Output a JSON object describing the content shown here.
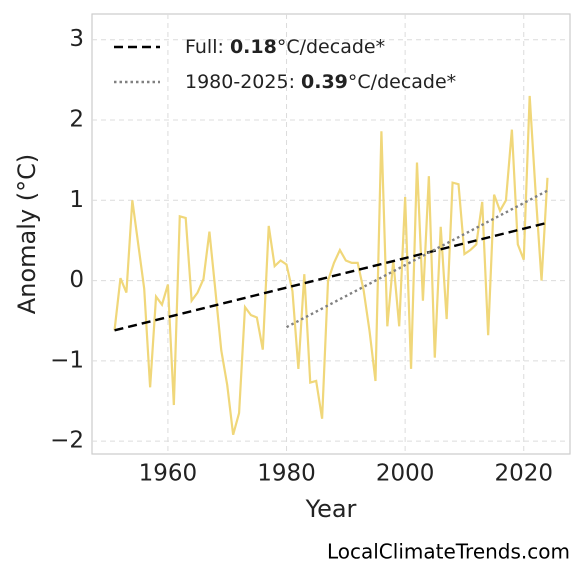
{
  "chart_data": {
    "type": "line",
    "xlabel": "Year",
    "ylabel": "Anomaly (°C)",
    "watermark": "LocalClimateTrends.com",
    "xlim": [
      1947.2,
      2027.8
    ],
    "ylim": [
      -2.16,
      3.32
    ],
    "xticks": [
      1960,
      1980,
      2000,
      2020
    ],
    "yticks": [
      {
        "value": -2,
        "label": "−2"
      },
      {
        "value": -1,
        "label": "−1"
      },
      0,
      1,
      2,
      3
    ],
    "grid": true,
    "legend": "upper left",
    "series": [
      {
        "color": "#f0d77a",
        "style": "solid",
        "x": [
          1951,
          1952,
          1953,
          1954,
          1955,
          1956,
          1957,
          1958,
          1959,
          1960,
          1961,
          1962,
          1963,
          1964,
          1965,
          1966,
          1967,
          1968,
          1969,
          1970,
          1971,
          1972,
          1973,
          1974,
          1975,
          1976,
          1977,
          1978,
          1979,
          1980,
          1981,
          1982,
          1983,
          1984,
          1985,
          1986,
          1987,
          1988,
          1989,
          1990,
          1991,
          1992,
          1993,
          1994,
          1995,
          1996,
          1997,
          1998,
          1999,
          2000,
          2001,
          2002,
          2003,
          2004,
          2005,
          2006,
          2007,
          2008,
          2009,
          2010,
          2011,
          2012,
          2013,
          2014,
          2015,
          2016,
          2017,
          2018,
          2019,
          2020,
          2021,
          2022,
          2023,
          2024
        ],
        "values": [
          -0.62,
          0.03,
          -0.15,
          1.0,
          0.45,
          -0.1,
          -1.33,
          -0.2,
          -0.3,
          -0.05,
          -1.55,
          0.8,
          0.78,
          -0.25,
          -0.15,
          0.02,
          0.61,
          -0.12,
          -0.87,
          -1.3,
          -1.92,
          -1.65,
          -0.33,
          -0.43,
          -0.46,
          -0.86,
          0.68,
          0.18,
          0.25,
          0.2,
          -0.13,
          -1.1,
          0.08,
          -1.27,
          -1.25,
          -1.72,
          0.0,
          0.22,
          0.38,
          0.25,
          0.22,
          0.22,
          -0.12,
          -0.63,
          -1.25,
          1.86,
          -0.57,
          0.25,
          -0.57,
          1.04,
          -1.1,
          1.47,
          -0.25,
          1.3,
          -0.96,
          0.67,
          -0.48,
          1.22,
          1.2,
          0.33,
          0.38,
          0.45,
          0.98,
          -0.68,
          1.07,
          0.87,
          1.0,
          1.88,
          0.45,
          0.26,
          2.3,
          1.1,
          0.0,
          1.28
        ]
      },
      {
        "color": "#000000",
        "style": "dashed",
        "label_parts": [
          "Full: ",
          "0.18",
          "°C/decade*"
        ],
        "x": [
          1951,
          2024
        ],
        "values": [
          -0.62,
          0.72
        ]
      },
      {
        "color": "#808080",
        "style": "dotted",
        "label_parts": [
          "1980-2025: ",
          "0.39",
          "°C/decade*"
        ],
        "x": [
          1980,
          2024
        ],
        "values": [
          -0.58,
          1.12
        ]
      }
    ]
  }
}
